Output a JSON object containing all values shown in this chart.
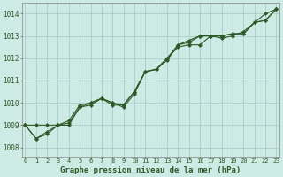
{
  "title": "Graphe pression niveau de la mer (hPa)",
  "background_color": "#ceeae4",
  "grid_color": "#aacfc8",
  "line_color": "#2d5a27",
  "x_values": [
    0,
    1,
    2,
    3,
    4,
    5,
    6,
    7,
    8,
    9,
    10,
    11,
    12,
    13,
    14,
    15,
    16,
    17,
    18,
    19,
    20,
    21,
    22,
    23
  ],
  "series1": [
    1009.0,
    1009.0,
    1009.0,
    1009.0,
    1009.0,
    1009.8,
    1009.9,
    1010.2,
    1010.0,
    1009.8,
    1010.4,
    1011.4,
    1011.5,
    1011.9,
    1012.6,
    1012.7,
    1013.0,
    1013.0,
    1013.0,
    1013.1,
    1013.1,
    1013.6,
    1014.0,
    1014.2
  ],
  "series2": [
    1009.0,
    1008.4,
    1008.6,
    1009.0,
    1009.1,
    1009.8,
    1010.0,
    1010.2,
    1010.0,
    1009.9,
    1010.5,
    1011.4,
    1011.5,
    1012.0,
    1012.5,
    1012.6,
    1012.6,
    1013.0,
    1012.9,
    1013.0,
    1013.2,
    1013.6,
    1013.7,
    1014.2
  ],
  "series3": [
    1009.0,
    1008.4,
    1008.7,
    1009.0,
    1009.2,
    1009.9,
    1010.0,
    1010.2,
    1009.9,
    1009.9,
    1010.5,
    1011.4,
    1011.5,
    1012.0,
    1012.6,
    1012.8,
    1013.0,
    1013.0,
    1013.0,
    1013.1,
    1013.1,
    1013.6,
    1013.7,
    1014.2
  ],
  "ylim": [
    1007.6,
    1014.5
  ],
  "yticks": [
    1008,
    1009,
    1010,
    1011,
    1012,
    1013,
    1014
  ],
  "marker": "D",
  "marker_size": 2.2,
  "line_width": 0.8
}
